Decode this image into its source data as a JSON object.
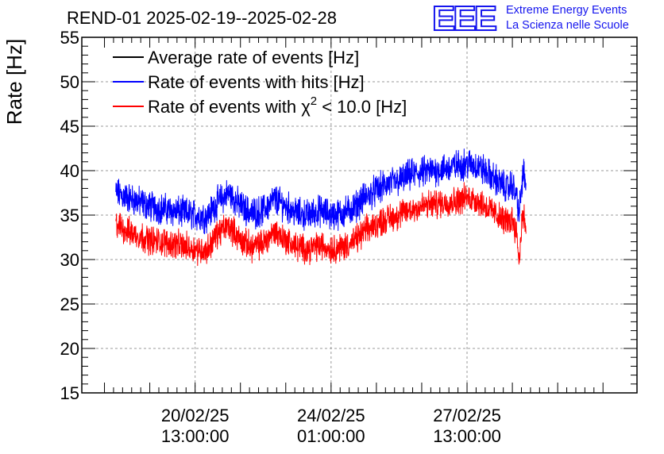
{
  "logo": {
    "mark": "EEE",
    "line1": "Extreme Energy Events",
    "line2": "La Scienza nelle Scuole",
    "color": "#1515ee"
  },
  "chart_data": {
    "type": "line",
    "title": "REND-01 2025-02-19--2025-02-28",
    "xlabel": "",
    "ylabel": "Rate [Hz]",
    "ylim": [
      15,
      55
    ],
    "yticks": [
      15,
      20,
      25,
      30,
      35,
      40,
      45,
      50,
      55
    ],
    "xlim_hours": [
      0,
      245
    ],
    "xtick_labels": [
      {
        "hour": 50,
        "date": "20/02/25",
        "time": "13:00:00"
      },
      {
        "hour": 110,
        "date": "24/02/25",
        "time": "01:00:00"
      },
      {
        "hour": 170,
        "date": "27/02/25",
        "time": "13:00:00"
      }
    ],
    "grid": true,
    "legend_position": "top-left",
    "series": [
      {
        "name": "Average rate of events [Hz]",
        "color": "#000000",
        "noise": 0,
        "x": [],
        "values": []
      },
      {
        "name": "Rate of events with hits [Hz]",
        "color": "#0000ff",
        "noise": 2.6,
        "x": [
          15,
          20,
          30,
          40,
          50,
          55,
          60,
          65,
          70,
          75,
          80,
          85,
          90,
          95,
          100,
          105,
          110,
          115,
          120,
          125,
          130,
          135,
          140,
          145,
          150,
          155,
          160,
          165,
          170,
          175,
          180,
          185,
          188,
          190,
          192,
          193,
          194,
          195,
          196
        ],
        "values": [
          37.5,
          37.0,
          36.0,
          35.5,
          35.0,
          34.8,
          36.5,
          37.5,
          36.0,
          35.2,
          35.5,
          36.8,
          36.0,
          35.2,
          35.0,
          35.5,
          35.0,
          35.2,
          35.8,
          37.0,
          37.8,
          38.5,
          38.8,
          39.5,
          39.8,
          40.0,
          40.2,
          40.5,
          40.8,
          40.5,
          39.5,
          38.5,
          38.0,
          38.5,
          37.0,
          35.0,
          38.0,
          40.0,
          37.5
        ]
      },
      {
        "name": "Rate of events with χ² < 10.0 [Hz]",
        "color": "#ff0000",
        "noise": 2.4,
        "x": [
          15,
          20,
          30,
          40,
          50,
          55,
          60,
          65,
          70,
          75,
          80,
          85,
          90,
          95,
          100,
          105,
          110,
          115,
          120,
          125,
          130,
          135,
          140,
          145,
          150,
          155,
          160,
          165,
          170,
          175,
          180,
          185,
          188,
          190,
          192,
          193,
          194,
          195,
          196
        ],
        "values": [
          34.0,
          33.2,
          32.2,
          31.8,
          31.2,
          31.0,
          33.0,
          33.8,
          32.2,
          31.4,
          31.8,
          33.2,
          32.2,
          31.4,
          31.2,
          31.6,
          31.2,
          31.4,
          32.0,
          33.2,
          34.0,
          34.6,
          35.0,
          35.6,
          36.0,
          36.2,
          36.4,
          36.6,
          37.0,
          36.6,
          35.6,
          34.6,
          34.2,
          34.6,
          33.0,
          29.5,
          34.0,
          35.0,
          33.5
        ]
      }
    ],
    "legend_entries": [
      {
        "prefix": "Average rate of events [Hz]",
        "sup": "",
        "suffix": ""
      },
      {
        "prefix": "Rate of events with hits [Hz]",
        "sup": "",
        "suffix": ""
      },
      {
        "prefix": "Rate of events with χ",
        "sup": "2",
        "suffix": " < 10.0 [Hz]"
      }
    ]
  }
}
